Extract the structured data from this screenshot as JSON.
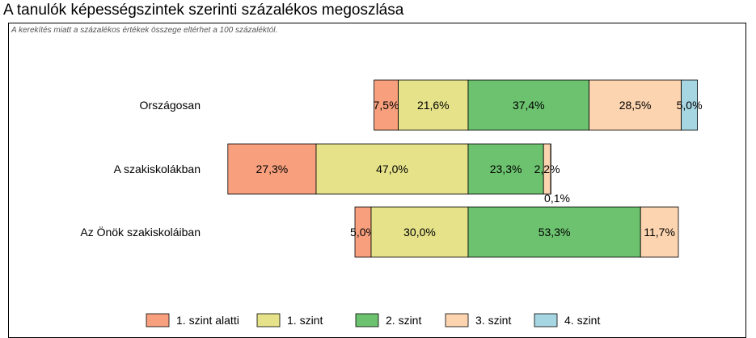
{
  "page": {
    "title": "A tanulók képességszintek szerinti százalékos megoszlása",
    "note": "A kerekítés miatt a  százalékos értékek összege eltérhet a 100 százaléktól."
  },
  "chart_data": {
    "type": "bar",
    "orientation": "horizontal",
    "stacked": true,
    "diverging": true,
    "title": "A tanulók képességszintek szerinti százalékos megoszlása",
    "categories": [
      "Országosan",
      "A szakiskolákban",
      "Az Önök szakiskoláiban"
    ],
    "series": [
      {
        "name": "1. szint alatti",
        "color": "#F8A07E",
        "values": [
          7.5,
          27.3,
          5.0
        ],
        "labels": [
          "7,5%",
          "27,3%",
          "5,0%"
        ]
      },
      {
        "name": "1. szint",
        "color": "#E6E28A",
        "values": [
          21.6,
          47.0,
          30.0
        ],
        "labels": [
          "21,6%",
          "47,0%",
          "30,0%"
        ]
      },
      {
        "name": "2. szint",
        "color": "#6CC26E",
        "values": [
          37.4,
          23.3,
          53.3
        ],
        "labels": [
          "37,4%",
          "23,3%",
          "53,3%"
        ]
      },
      {
        "name": "3. szint",
        "color": "#FDD4B0",
        "values": [
          28.5,
          2.2,
          11.7
        ],
        "labels": [
          "28,5%",
          "2,2%",
          "11,7%"
        ]
      },
      {
        "name": "4. szint",
        "color": "#A6D6E2",
        "values": [
          5.0,
          0.1,
          0.0
        ],
        "labels": [
          "5,0%",
          "0,1%",
          ""
        ]
      }
    ],
    "legend_position": "bottom",
    "grid": false
  }
}
